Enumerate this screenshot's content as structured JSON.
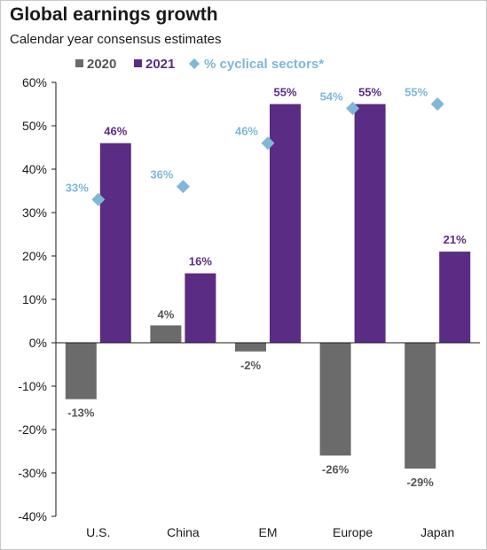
{
  "header": {
    "title": "Global earnings growth",
    "subtitle": "Calendar year consensus estimates"
  },
  "colors": {
    "s2020": "#6b6b6b",
    "s2021": "#5b2c83",
    "cyclical": "#7fb7d8",
    "axis": "#1a1a1a"
  },
  "chart_data": {
    "type": "bar",
    "categories": [
      "U.S.",
      "China",
      "EM",
      "Europe",
      "Japan"
    ],
    "ylim": [
      -40,
      60
    ],
    "yticks": [
      -40,
      -30,
      -20,
      -10,
      0,
      10,
      20,
      30,
      40,
      50,
      60
    ],
    "ytick_labels": [
      "-40%",
      "-30%",
      "-20%",
      "-10%",
      "0%",
      "10%",
      "20%",
      "30%",
      "40%",
      "50%",
      "60%"
    ],
    "series": [
      {
        "name": "2020",
        "type": "bar",
        "values": [
          -13,
          4,
          -2,
          -26,
          -29
        ],
        "labels": [
          "-13%",
          "4%",
          "-2%",
          "-26%",
          "-29%"
        ]
      },
      {
        "name": "2021",
        "type": "bar",
        "values": [
          46,
          16,
          55,
          55,
          21
        ],
        "labels": [
          "46%",
          "16%",
          "55%",
          "55%",
          "21%"
        ]
      },
      {
        "name": "% cyclical sectors*",
        "type": "scatter",
        "marker": "diamond",
        "values": [
          33,
          36,
          46,
          54,
          55
        ],
        "labels": [
          "33%",
          "36%",
          "46%",
          "54%",
          "55%"
        ]
      }
    ],
    "legend": {
      "placement": "top",
      "items": [
        "2020",
        "2021",
        "% cyclical sectors*"
      ]
    },
    "grid": false
  }
}
